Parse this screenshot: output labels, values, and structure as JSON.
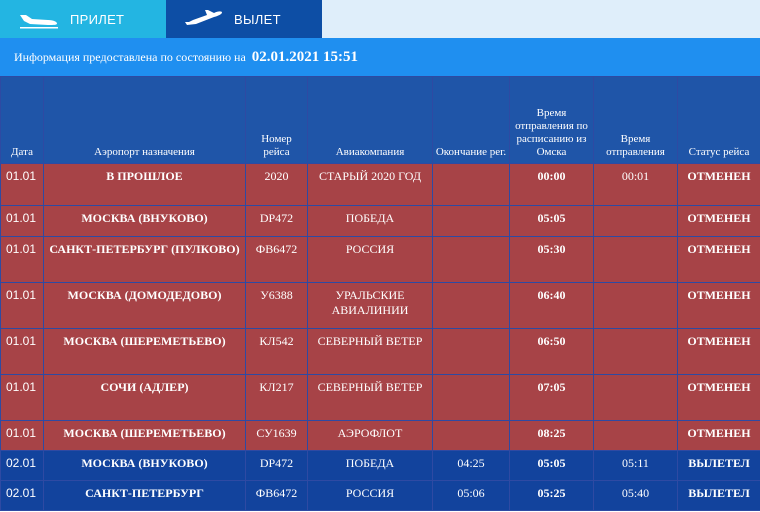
{
  "tabs": {
    "arrivals": {
      "label": "ПРИЛЕТ",
      "icon": "plane-landing-icon"
    },
    "departures": {
      "label": "ВЫЛЕТ",
      "icon": "plane-takeoff-icon"
    }
  },
  "info": {
    "text": "Информация предоставлена по состоянию на",
    "datetime": "02.01.2021 15:51"
  },
  "table": {
    "headers": {
      "date": "Дата",
      "airport": "Аэропорт назначения",
      "flight": "Номер рейса",
      "airline": "Авиакомпания",
      "reg_end": "Окончание рег.",
      "sched": "Время отправления по расписанию из Омска",
      "actual": "Время отправления",
      "status": "Статус рейса"
    },
    "rows": [
      {
        "date": "01.01",
        "airport": "В ПРОШЛОЕ",
        "flight": "2020",
        "airline": "СТАРЫЙ 2020 ГОД",
        "reg_end": "",
        "sched": "00:00",
        "actual": "00:01",
        "status": "ОТМЕНЕН"
      },
      {
        "date": "01.01",
        "airport": "МОСКВА (ВНУКОВО)",
        "flight": "DP472",
        "airline": "ПОБЕДА",
        "reg_end": "",
        "sched": "05:05",
        "actual": "",
        "status": "ОТМЕНЕН"
      },
      {
        "date": "01.01",
        "airport": "САНКТ-ПЕТЕРБУРГ (ПУЛКОВО)",
        "flight": "ФВ6472",
        "airline": "РОССИЯ",
        "reg_end": "",
        "sched": "05:30",
        "actual": "",
        "status": "ОТМЕНЕН"
      },
      {
        "date": "01.01",
        "airport": "МОСКВА (ДОМОДЕДОВО)",
        "flight": "У6388",
        "airline": "УРАЛЬСКИЕ АВИАЛИНИИ",
        "reg_end": "",
        "sched": "06:40",
        "actual": "",
        "status": "ОТМЕНЕН"
      },
      {
        "date": "01.01",
        "airport": "МОСКВА (ШЕРЕМЕТЬЕВО)",
        "flight": "КЛ542",
        "airline": "СЕВЕРНЫЙ ВЕТЕР",
        "reg_end": "",
        "sched": "06:50",
        "actual": "",
        "status": "ОТМЕНЕН"
      },
      {
        "date": "01.01",
        "airport": "СОЧИ (АДЛЕР)",
        "flight": "КЛ217",
        "airline": "СЕВЕРНЫЙ ВЕТЕР",
        "reg_end": "",
        "sched": "07:05",
        "actual": "",
        "status": "ОТМЕНЕН"
      },
      {
        "date": "01.01",
        "airport": "МОСКВА (ШЕРЕМЕТЬЕВО)",
        "flight": "СУ1639",
        "airline": "АЭРОФЛОТ",
        "reg_end": "",
        "sched": "08:25",
        "actual": "",
        "status": "ОТМЕНЕН"
      },
      {
        "date": "02.01",
        "airport": "МОСКВА (ВНУКОВО)",
        "flight": "DP472",
        "airline": "ПОБЕДА",
        "reg_end": "04:25",
        "sched": "05:05",
        "actual": "05:11",
        "status": "ВЫЛЕТЕЛ"
      },
      {
        "date": "02.01",
        "airport": "САНКТ-ПЕТЕРБУРГ",
        "flight": "ФВ6472",
        "airline": "РОССИЯ",
        "reg_end": "05:06",
        "sched": "05:25",
        "actual": "05:40",
        "status": "ВЫЛЕТЕЛ"
      }
    ]
  },
  "colors": {
    "tab_arrivals": "#23b5e2",
    "tab_departures": "#0d4ea5",
    "info_bar": "#1f8ff0",
    "header_bg": "#1f55a8",
    "cancelled_row": "#a74347",
    "departed_row": "#12439d"
  }
}
